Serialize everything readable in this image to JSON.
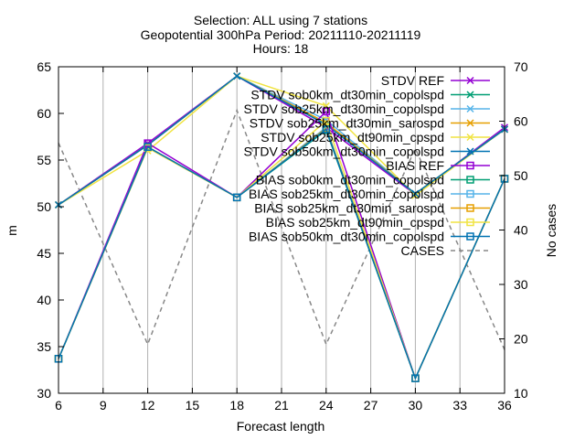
{
  "chart_data": {
    "type": "line",
    "title_lines": [
      "Selection: ALL using     7 stations",
      "Geopotential 300hPa   Period: 20211110-20211119",
      "Hours: 18"
    ],
    "xlabel": "Forecast length",
    "ylabel": "m",
    "y2label": "No cases",
    "xlim": [
      6,
      36
    ],
    "ylim": [
      30,
      65
    ],
    "y2lim": [
      10,
      70
    ],
    "xticks": [
      6,
      9,
      12,
      15,
      18,
      21,
      24,
      27,
      30,
      33,
      36
    ],
    "yticks": [
      30,
      35,
      40,
      45,
      50,
      55,
      60,
      65
    ],
    "y2ticks": [
      10,
      20,
      30,
      40,
      50,
      60,
      70
    ],
    "x": [
      6,
      12,
      18,
      24,
      30,
      36
    ],
    "legend_position": "top-right",
    "series": [
      {
        "name": "STDV REF",
        "color": "#9400d3",
        "marker": "x",
        "axis": "y",
        "values": [
          50.2,
          56.8,
          64.0,
          58.5,
          51.3,
          58.5
        ]
      },
      {
        "name": "STDV sob0km_dt30min_copolspd",
        "color": "#009e73",
        "marker": "x",
        "axis": "y",
        "values": [
          50.2,
          56.6,
          64.0,
          58.8,
          51.4,
          58.3
        ]
      },
      {
        "name": "STDV sob25km_dt30min_copolspd",
        "color": "#56b4e9",
        "marker": "x",
        "axis": "y",
        "values": [
          50.2,
          56.6,
          64.0,
          59.3,
          51.4,
          58.3
        ]
      },
      {
        "name": "STDV sob25km_dt30min_sarospd",
        "color": "#e69f00",
        "marker": "x",
        "axis": "y",
        "values": [
          50.2,
          56.6,
          64.0,
          59.0,
          51.4,
          58.3
        ]
      },
      {
        "name": "STDV sob25km_dt90min_cpspd",
        "color": "#f0e442",
        "marker": "x",
        "axis": "y",
        "values": [
          50.2,
          56.0,
          64.0,
          60.8,
          51.2,
          58.3
        ]
      },
      {
        "name": "STDV sob50km_dt30min_copolspd",
        "color": "#0072b2",
        "marker": "x",
        "axis": "y",
        "values": [
          50.2,
          56.6,
          64.0,
          58.8,
          51.4,
          58.3
        ]
      },
      {
        "name": "BIAS REF",
        "color": "#9400d3",
        "marker": "square",
        "axis": "y",
        "values": [
          33.7,
          56.8,
          51.0,
          60.2,
          31.6,
          53.0
        ]
      },
      {
        "name": "BIAS sob0km_dt30min_copolspd",
        "color": "#009e73",
        "marker": "square",
        "axis": "y",
        "values": [
          33.7,
          56.4,
          51.0,
          58.2,
          31.6,
          53.0
        ]
      },
      {
        "name": "BIAS sob25km_dt30min_copolspd",
        "color": "#56b4e9",
        "marker": "square",
        "axis": "y",
        "values": [
          33.7,
          56.4,
          51.0,
          58.5,
          31.6,
          53.0
        ]
      },
      {
        "name": "BIAS sob25km_dt30min_sarospd",
        "color": "#e69f00",
        "marker": "square",
        "axis": "y",
        "values": [
          33.7,
          56.4,
          51.0,
          58.4,
          31.6,
          53.0
        ]
      },
      {
        "name": "BIAS sob25km_dt90min_cpspd",
        "color": "#f0e442",
        "marker": "square",
        "axis": "y",
        "values": [
          33.7,
          56.3,
          51.0,
          59.2,
          31.6,
          53.0
        ]
      },
      {
        "name": "BIAS sob50km_dt30min_copolspd",
        "color": "#0072b2",
        "marker": "square",
        "axis": "y",
        "values": [
          33.7,
          56.4,
          51.0,
          58.3,
          31.6,
          53.0
        ]
      },
      {
        "name": "CASES",
        "color": "#888888",
        "marker": "none",
        "dashed": true,
        "axis": "y2",
        "values": [
          56,
          19,
          62,
          19,
          55,
          18
        ]
      }
    ]
  }
}
